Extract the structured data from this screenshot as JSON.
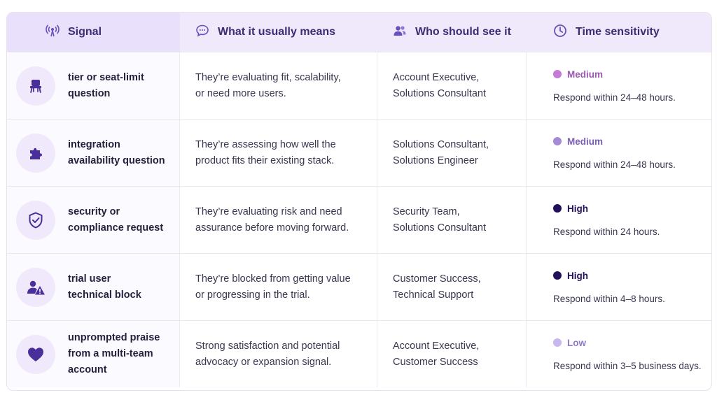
{
  "header": {
    "signal": "Signal",
    "meaning": "What it usually means",
    "audience": "Who should see it",
    "time": "Time sensitivity"
  },
  "colors": {
    "accent": "#5b3fa8",
    "header_bg": "#efe9fb",
    "medium_dot": "#c67ad7",
    "medium2_dot": "#b488d6",
    "high_dot": "#22105c",
    "low_dot": "#c8b7ef"
  },
  "rows": [
    {
      "icon": "chair-icon",
      "signal": "tier or seat-limit\nquestion",
      "meaning": "They’re evaluating fit, scalability,\nor need more users.",
      "audience": "Account Executive,\nSolutions Consultant",
      "level": "Medium",
      "level_color": "#c67ad7",
      "level_text_color": "#9a57b0",
      "respond": "Respond within 24–48 hours."
    },
    {
      "icon": "puzzle-icon",
      "signal": "integration\navailability question",
      "meaning": "They’re assessing how well the\nproduct fits their existing stack.",
      "audience": "Solutions Consultant,\nSolutions Engineer",
      "level": "Medium",
      "level_color": "#a58ad6",
      "level_text_color": "#7b5db8",
      "respond": "Respond within 24–48 hours."
    },
    {
      "icon": "shield-check-icon",
      "signal": "security or\ncompliance request",
      "meaning": "They’re evaluating risk and need\nassurance before moving forward.",
      "audience": "Security Team,\nSolutions Consultant",
      "level": "High",
      "level_color": "#22105c",
      "level_text_color": "#22105c",
      "respond": "Respond within 24 hours."
    },
    {
      "icon": "user-warning-icon",
      "signal": "trial user\ntechnical block",
      "meaning": "They’re blocked from getting value\nor progressing in the trial.",
      "audience": "Customer Success,\nTechnical Support",
      "level": "High",
      "level_color": "#22105c",
      "level_text_color": "#22105c",
      "respond": "Respond within 4–8 hours."
    },
    {
      "icon": "heart-icon",
      "signal": "unprompted praise\nfrom a multi-team\naccount",
      "meaning": "Strong satisfaction and potential\nadvocacy or expansion signal.",
      "audience": "Account Executive,\nCustomer Success",
      "level": "Low",
      "level_color": "#c8b7ef",
      "level_text_color": "#8e79c9",
      "respond": "Respond within 3–5 business days."
    }
  ]
}
